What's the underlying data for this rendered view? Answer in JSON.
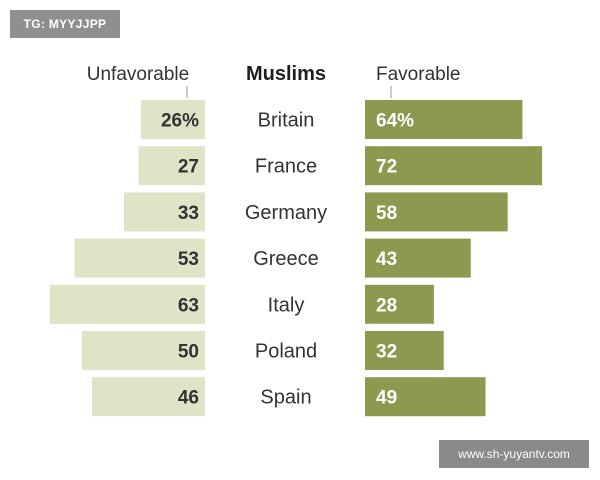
{
  "watermarks": {
    "top_left": "TG: MYYJJPP",
    "bottom_right": "www.sh-yuyantv.com"
  },
  "chart_data": {
    "type": "bar",
    "title": "Muslims",
    "categories": [
      "Britain",
      "France",
      "Germany",
      "Greece",
      "Italy",
      "Poland",
      "Spain"
    ],
    "series": [
      {
        "name": "Unfavorable",
        "values": [
          26,
          27,
          33,
          53,
          63,
          50,
          46
        ],
        "labels": [
          "26%",
          "27",
          "33",
          "53",
          "63",
          "50",
          "46"
        ],
        "color": "#dde5c6",
        "direction": "left"
      },
      {
        "name": "Favorable",
        "values": [
          64,
          72,
          58,
          43,
          28,
          32,
          49
        ],
        "labels": [
          "64%",
          "72",
          "58",
          "43",
          "28",
          "32",
          "49"
        ],
        "color": "#8c9a50",
        "direction": "right"
      }
    ],
    "xlim": [
      0,
      100
    ],
    "grid": false,
    "legend": "top"
  }
}
